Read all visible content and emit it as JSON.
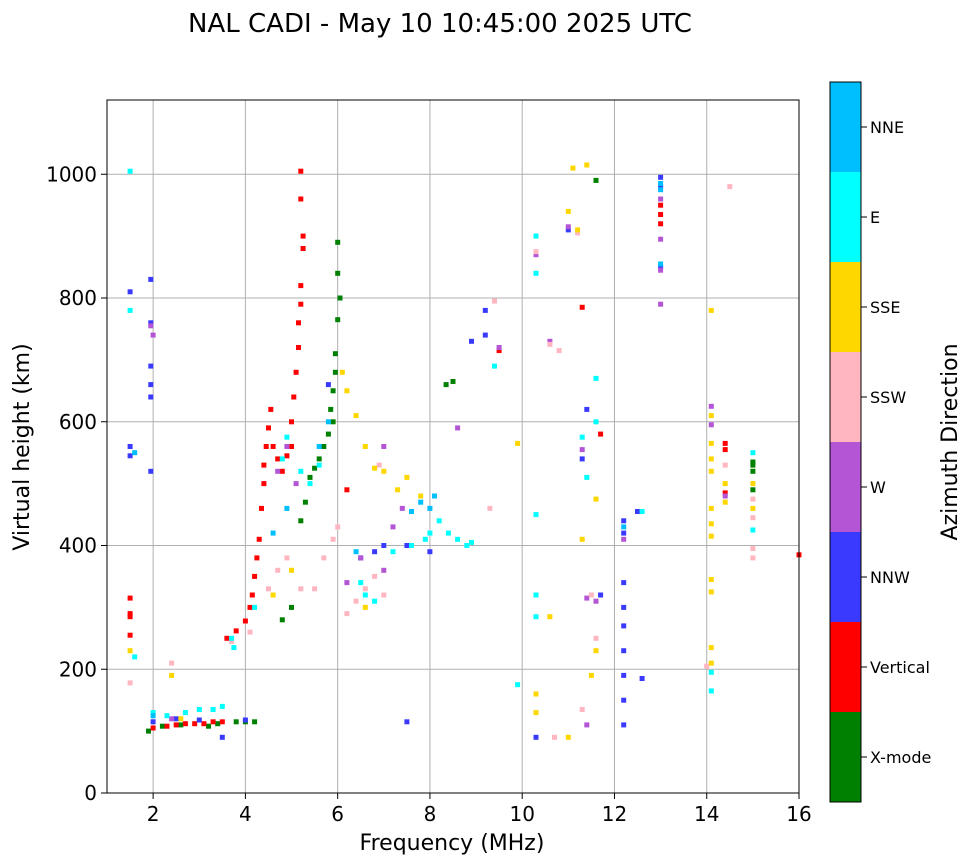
{
  "chart_data": {
    "type": "scatter",
    "title": "NAL CADI - May 10 10:45:00 2025 UTC",
    "xlabel": "Frequency (MHz)",
    "ylabel": "Virtual height (km)",
    "xlim": [
      1,
      16
    ],
    "ylim": [
      0,
      1120
    ],
    "xticks": [
      2,
      4,
      6,
      8,
      10,
      12,
      14,
      16
    ],
    "yticks": [
      0,
      200,
      400,
      600,
      800,
      1000
    ],
    "grid": true,
    "colorbar": {
      "label": "Azimuth Direction",
      "categories": [
        {
          "name": "X-mode",
          "color": "#008000"
        },
        {
          "name": "Vertical",
          "color": "#ff0000"
        },
        {
          "name": "NNW",
          "color": "#3a3aff"
        },
        {
          "name": "W",
          "color": "#b455d6"
        },
        {
          "name": "SSW",
          "color": "#ffb6c1"
        },
        {
          "name": "SSE",
          "color": "#ffd700"
        },
        {
          "name": "E",
          "color": "#00ffff"
        },
        {
          "name": "NNE",
          "color": "#00bfff"
        }
      ]
    },
    "series": [
      {
        "name": "X-mode",
        "points": [
          [
            1.9,
            100
          ],
          [
            2.2,
            108
          ],
          [
            2.6,
            110
          ],
          [
            3.2,
            108
          ],
          [
            3.4,
            112
          ],
          [
            3.8,
            115
          ],
          [
            4.0,
            115
          ],
          [
            4.2,
            115
          ],
          [
            4.8,
            280
          ],
          [
            5.0,
            300
          ],
          [
            5.2,
            440
          ],
          [
            5.3,
            470
          ],
          [
            5.4,
            510
          ],
          [
            5.5,
            525
          ],
          [
            5.6,
            540
          ],
          [
            5.7,
            560
          ],
          [
            5.8,
            580
          ],
          [
            5.9,
            600
          ],
          [
            5.85,
            620
          ],
          [
            5.9,
            650
          ],
          [
            5.95,
            680
          ],
          [
            5.95,
            710
          ],
          [
            6.0,
            840
          ],
          [
            6.0,
            890
          ],
          [
            6.0,
            765
          ],
          [
            6.05,
            800
          ],
          [
            8.5,
            665
          ],
          [
            8.35,
            660
          ],
          [
            11.6,
            990
          ],
          [
            15.0,
            520
          ],
          [
            15.0,
            530
          ],
          [
            15.0,
            535
          ],
          [
            15.0,
            490
          ]
        ]
      },
      {
        "name": "Vertical",
        "points": [
          [
            1.5,
            315
          ],
          [
            1.5,
            290
          ],
          [
            1.5,
            285
          ],
          [
            1.5,
            255
          ],
          [
            2.0,
            105
          ],
          [
            2.3,
            108
          ],
          [
            2.5,
            110
          ],
          [
            2.7,
            112
          ],
          [
            2.9,
            112
          ],
          [
            3.1,
            112
          ],
          [
            3.3,
            115
          ],
          [
            3.5,
            115
          ],
          [
            3.6,
            250
          ],
          [
            3.8,
            262
          ],
          [
            4.0,
            278
          ],
          [
            4.1,
            300
          ],
          [
            4.15,
            320
          ],
          [
            4.2,
            350
          ],
          [
            4.25,
            380
          ],
          [
            4.3,
            410
          ],
          [
            4.35,
            460
          ],
          [
            4.4,
            500
          ],
          [
            4.4,
            530
          ],
          [
            4.45,
            560
          ],
          [
            4.5,
            590
          ],
          [
            4.55,
            620
          ],
          [
            4.6,
            560
          ],
          [
            4.7,
            540
          ],
          [
            4.8,
            520
          ],
          [
            4.9,
            545
          ],
          [
            5.0,
            560
          ],
          [
            5.0,
            600
          ],
          [
            5.05,
            640
          ],
          [
            5.1,
            680
          ],
          [
            5.15,
            720
          ],
          [
            5.15,
            760
          ],
          [
            5.2,
            790
          ],
          [
            5.2,
            820
          ],
          [
            5.25,
            880
          ],
          [
            5.25,
            900
          ],
          [
            5.2,
            960
          ],
          [
            5.2,
            1005
          ],
          [
            6.2,
            490
          ],
          [
            9.5,
            715
          ],
          [
            11.3,
            785
          ],
          [
            11.7,
            580
          ],
          [
            13.0,
            920
          ],
          [
            13.0,
            935
          ],
          [
            13.0,
            950
          ],
          [
            14.4,
            565
          ],
          [
            14.4,
            555
          ],
          [
            14.4,
            485
          ],
          [
            16.0,
            385
          ]
        ]
      },
      {
        "name": "NNW",
        "points": [
          [
            1.5,
            810
          ],
          [
            1.5,
            560
          ],
          [
            1.5,
            545
          ],
          [
            1.95,
            830
          ],
          [
            1.95,
            760
          ],
          [
            1.95,
            690
          ],
          [
            1.95,
            660
          ],
          [
            1.95,
            640
          ],
          [
            1.95,
            520
          ],
          [
            2.0,
            115
          ],
          [
            2.5,
            120
          ],
          [
            3.0,
            118
          ],
          [
            3.5,
            90
          ],
          [
            4.0,
            118
          ],
          [
            5.8,
            660
          ],
          [
            6.5,
            380
          ],
          [
            6.8,
            390
          ],
          [
            7.0,
            400
          ],
          [
            7.5,
            115
          ],
          [
            7.5,
            400
          ],
          [
            8.0,
            390
          ],
          [
            9.2,
            780
          ],
          [
            9.2,
            740
          ],
          [
            8.9,
            730
          ],
          [
            10.3,
            90
          ],
          [
            11.0,
            910
          ],
          [
            11.3,
            540
          ],
          [
            11.4,
            620
          ],
          [
            11.7,
            320
          ],
          [
            12.2,
            110
          ],
          [
            12.2,
            150
          ],
          [
            12.2,
            190
          ],
          [
            12.2,
            230
          ],
          [
            12.2,
            270
          ],
          [
            12.2,
            300
          ],
          [
            12.2,
            340
          ],
          [
            12.2,
            420
          ],
          [
            12.2,
            440
          ],
          [
            12.5,
            455
          ],
          [
            12.6,
            185
          ],
          [
            13.0,
            850
          ],
          [
            13.0,
            980
          ],
          [
            13.0,
            995
          ]
        ]
      },
      {
        "name": "W",
        "points": [
          [
            2.0,
            740
          ],
          [
            1.95,
            755
          ],
          [
            2.4,
            120
          ],
          [
            4.9,
            560
          ],
          [
            4.7,
            520
          ],
          [
            5.1,
            500
          ],
          [
            6.2,
            340
          ],
          [
            6.5,
            380
          ],
          [
            7.0,
            360
          ],
          [
            7.2,
            430
          ],
          [
            7.4,
            460
          ],
          [
            7.0,
            560
          ],
          [
            8.6,
            590
          ],
          [
            9.5,
            720
          ],
          [
            10.3,
            870
          ],
          [
            10.6,
            730
          ],
          [
            11.0,
            915
          ],
          [
            11.3,
            555
          ],
          [
            11.4,
            110
          ],
          [
            11.4,
            315
          ],
          [
            11.6,
            310
          ],
          [
            12.2,
            410
          ],
          [
            13.0,
            790
          ],
          [
            13.0,
            845
          ],
          [
            13.0,
            895
          ],
          [
            13.0,
            960
          ],
          [
            14.1,
            625
          ],
          [
            14.1,
            595
          ],
          [
            14.4,
            480
          ]
        ]
      },
      {
        "name": "SSW",
        "points": [
          [
            1.5,
            178
          ],
          [
            2.4,
            210
          ],
          [
            3.7,
            245
          ],
          [
            4.1,
            260
          ],
          [
            4.5,
            330
          ],
          [
            4.7,
            360
          ],
          [
            4.9,
            380
          ],
          [
            5.2,
            330
          ],
          [
            5.5,
            330
          ],
          [
            5.7,
            380
          ],
          [
            5.9,
            410
          ],
          [
            6.0,
            430
          ],
          [
            6.2,
            290
          ],
          [
            6.4,
            310
          ],
          [
            6.6,
            330
          ],
          [
            6.8,
            350
          ],
          [
            7.0,
            320
          ],
          [
            6.9,
            530
          ],
          [
            9.3,
            460
          ],
          [
            9.4,
            795
          ],
          [
            10.3,
            875
          ],
          [
            10.6,
            725
          ],
          [
            10.7,
            90
          ],
          [
            10.8,
            715
          ],
          [
            11.2,
            905
          ],
          [
            11.3,
            135
          ],
          [
            11.5,
            320
          ],
          [
            11.6,
            250
          ],
          [
            14.0,
            205
          ],
          [
            14.4,
            530
          ],
          [
            15.0,
            380
          ],
          [
            15.0,
            395
          ],
          [
            15.0,
            445
          ],
          [
            15.0,
            475
          ],
          [
            14.5,
            980
          ]
        ]
      },
      {
        "name": "SSE",
        "points": [
          [
            1.5,
            230
          ],
          [
            2.4,
            190
          ],
          [
            2.6,
            120
          ],
          [
            4.6,
            320
          ],
          [
            5.0,
            360
          ],
          [
            6.1,
            680
          ],
          [
            6.2,
            650
          ],
          [
            6.4,
            610
          ],
          [
            6.6,
            560
          ],
          [
            6.8,
            525
          ],
          [
            7.0,
            520
          ],
          [
            7.3,
            490
          ],
          [
            7.5,
            510
          ],
          [
            7.8,
            480
          ],
          [
            6.6,
            300
          ],
          [
            9.9,
            565
          ],
          [
            10.3,
            130
          ],
          [
            10.3,
            160
          ],
          [
            10.6,
            285
          ],
          [
            11.0,
            90
          ],
          [
            11.1,
            1010
          ],
          [
            11.4,
            1015
          ],
          [
            11.0,
            940
          ],
          [
            11.2,
            910
          ],
          [
            11.3,
            410
          ],
          [
            11.6,
            475
          ],
          [
            11.6,
            230
          ],
          [
            11.5,
            190
          ],
          [
            14.1,
            780
          ],
          [
            14.1,
            610
          ],
          [
            14.1,
            565
          ],
          [
            14.1,
            540
          ],
          [
            14.1,
            520
          ],
          [
            14.1,
            460
          ],
          [
            14.1,
            435
          ],
          [
            14.1,
            415
          ],
          [
            14.1,
            345
          ],
          [
            14.1,
            325
          ],
          [
            14.1,
            235
          ],
          [
            14.1,
            210
          ],
          [
            14.4,
            470
          ],
          [
            14.4,
            500
          ],
          [
            15.0,
            500
          ],
          [
            15.0,
            460
          ]
        ]
      },
      {
        "name": "E",
        "points": [
          [
            1.5,
            1005
          ],
          [
            1.5,
            780
          ],
          [
            1.6,
            220
          ],
          [
            2.0,
            130
          ],
          [
            2.3,
            125
          ],
          [
            2.7,
            130
          ],
          [
            3.0,
            135
          ],
          [
            3.3,
            135
          ],
          [
            3.5,
            140
          ],
          [
            3.7,
            250
          ],
          [
            3.75,
            235
          ],
          [
            4.2,
            300
          ],
          [
            4.8,
            540
          ],
          [
            4.9,
            575
          ],
          [
            5.2,
            520
          ],
          [
            5.4,
            500
          ],
          [
            5.6,
            530
          ],
          [
            6.5,
            340
          ],
          [
            6.8,
            310
          ],
          [
            6.6,
            320
          ],
          [
            7.2,
            390
          ],
          [
            7.6,
            400
          ],
          [
            7.9,
            410
          ],
          [
            8.0,
            420
          ],
          [
            8.2,
            440
          ],
          [
            8.4,
            420
          ],
          [
            8.6,
            410
          ],
          [
            8.8,
            400
          ],
          [
            8.9,
            405
          ],
          [
            9.4,
            690
          ],
          [
            9.9,
            175
          ],
          [
            10.3,
            320
          ],
          [
            10.3,
            285
          ],
          [
            10.3,
            450
          ],
          [
            10.3,
            840
          ],
          [
            10.3,
            900
          ],
          [
            11.3,
            575
          ],
          [
            11.4,
            510
          ],
          [
            11.6,
            600
          ],
          [
            11.6,
            670
          ],
          [
            12.6,
            455
          ],
          [
            14.1,
            165
          ],
          [
            14.1,
            195
          ],
          [
            15.0,
            425
          ],
          [
            15.0,
            550
          ]
        ]
      },
      {
        "name": "NNE",
        "points": [
          [
            1.6,
            550
          ],
          [
            2.0,
            125
          ],
          [
            4.6,
            420
          ],
          [
            4.9,
            460
          ],
          [
            5.6,
            560
          ],
          [
            5.8,
            600
          ],
          [
            6.4,
            390
          ],
          [
            7.6,
            455
          ],
          [
            7.8,
            470
          ],
          [
            8.0,
            460
          ],
          [
            8.1,
            480
          ],
          [
            12.2,
            430
          ],
          [
            13.0,
            855
          ],
          [
            13.0,
            985
          ],
          [
            13.0,
            975
          ]
        ]
      }
    ]
  }
}
